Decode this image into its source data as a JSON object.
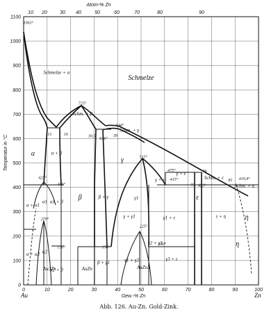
{
  "top_axis_title": "Atom-% Zn",
  "top_ticks": [
    "10",
    "20",
    "30",
    "40",
    "50",
    "60",
    "70",
    "80",
    "90"
  ],
  "bottom_axis_title": "Gew.-% Zn",
  "bottom_ticks": [
    "0",
    "10",
    "20",
    "30",
    "40",
    "50",
    "60",
    "70",
    "80",
    "90",
    "100"
  ],
  "left_end_label": "Au",
  "right_end_label": "Zn",
  "y_axis_title": "Temperatur in °C",
  "y_ticks": [
    "0",
    "100",
    "200",
    "300",
    "400",
    "500",
    "600",
    "700",
    "800",
    "900",
    "1000",
    "1100"
  ],
  "caption": "Abb. 126.  Au-Zn.  Gold-Zink.",
  "chart_data": {
    "type": "phase-diagram",
    "xlim": [
      0,
      100
    ],
    "ylim": [
      0,
      1100
    ],
    "labels": [
      {
        "id": "melt",
        "text": "Schmelze",
        "x": 50,
        "y": 840
      },
      {
        "id": "melt-alpha",
        "text": "Schmelze + α",
        "x": 14,
        "y": 865
      },
      {
        "id": "melt-beta",
        "text": "Schm. + β",
        "x": 25,
        "y": 695
      },
      {
        "id": "melt-gamma",
        "text": "Schm. + γ",
        "x": 45,
        "y": 628
      },
      {
        "id": "gamma-eps",
        "text": "γ + ε",
        "x": 67,
        "y": 450
      },
      {
        "id": "schm-eps",
        "text": "Schm. + ε",
        "x": 81,
        "y": 433
      },
      {
        "id": "schm-eta",
        "text": "Schm. + η",
        "x": 94,
        "y": 400
      },
      {
        "id": "alpha",
        "text": "α",
        "x": 4,
        "y": 530
      },
      {
        "id": "alpha-beta",
        "text": "α + β",
        "x": 14,
        "y": 535
      },
      {
        "id": "beta",
        "text": "β",
        "x": 24,
        "y": 350
      },
      {
        "id": "beta-gamma",
        "text": "β + γ",
        "x": 34,
        "y": 355
      },
      {
        "id": "gamma",
        "text": "γ",
        "x": 42,
        "y": 505
      },
      {
        "id": "gamma1",
        "text": "γ1",
        "x": 48,
        "y": 350
      },
      {
        "id": "gamma-gamma1",
        "text": "γ + γ1",
        "x": 45,
        "y": 275
      },
      {
        "id": "gamma1-eps",
        "text": "γ1 + ε",
        "x": 62,
        "y": 270
      },
      {
        "id": "gamma-eps2",
        "text": "γ + ε",
        "x": 58,
        "y": 425
      },
      {
        "id": "eps",
        "text": "ε",
        "x": 74,
        "y": 350
      },
      {
        "id": "eps-eta",
        "text": "ε + η",
        "x": 84,
        "y": 275
      },
      {
        "id": "eta",
        "text": "η",
        "x": 95,
        "y": 270
      },
      {
        "id": "eta2",
        "text": "η",
        "x": 91,
        "y": 160
      },
      {
        "id": "alpha-a1",
        "text": "α + α1",
        "x": 4,
        "y": 320
      },
      {
        "id": "a1",
        "text": "α1",
        "x": 9,
        "y": 335
      },
      {
        "id": "a1-beta",
        "text": "α1 + β",
        "x": 14,
        "y": 335
      },
      {
        "id": "a2",
        "text": "α2",
        "x": 9,
        "y": 130
      },
      {
        "id": "au3zn",
        "text": "Au3Zn",
        "x": 11,
        "y": 60
      },
      {
        "id": "a2-b",
        "text": "α2 + β",
        "x": 14,
        "y": 55
      },
      {
        "id": "auzn",
        "text": "AuZn",
        "x": 27,
        "y": 60
      },
      {
        "id": "b-g1",
        "text": "β + γ1",
        "x": 34,
        "y": 85
      },
      {
        "id": "g1-g2",
        "text": "γ1 + γ2",
        "x": 46,
        "y": 95
      },
      {
        "id": "g2-g3",
        "text": "γ2 + γ3",
        "x": 56,
        "y": 165
      },
      {
        "id": "g3-eps",
        "text": "γ3 + ε",
        "x": 63,
        "y": 100
      },
      {
        "id": "auzn3",
        "text": "AuZn3",
        "x": 51,
        "y": 65
      },
      {
        "id": "a-a2",
        "text": "α + α2",
        "x": 4,
        "y": 120
      }
    ],
    "temperature_annotations": [
      {
        "text": "1063°",
        "x": 2,
        "y": 1070
      },
      {
        "text": "725°",
        "x": 25,
        "y": 740
      },
      {
        "text": "644°",
        "x": 41,
        "y": 650
      },
      {
        "text": "13",
        "x": 11,
        "y": 612
      },
      {
        "text": "16",
        "x": 18,
        "y": 612
      },
      {
        "text": "30,5",
        "x": 29,
        "y": 605
      },
      {
        "text": "636°",
        "x": 34,
        "y": 595
      },
      {
        "text": "39",
        "x": 39,
        "y": 607
      },
      {
        "text": "515°",
        "x": 51,
        "y": 520
      },
      {
        "text": "475°",
        "x": 63,
        "y": 465
      },
      {
        "text": "415°",
        "x": 64,
        "y": 427
      },
      {
        "text": "73",
        "x": 72,
        "y": 405
      },
      {
        "text": "78",
        "x": 77,
        "y": 460
      },
      {
        "text": "423°",
        "x": 76,
        "y": 403
      },
      {
        "text": "81",
        "x": 88,
        "y": 425
      },
      {
        "text": "419,4°",
        "x": 94,
        "y": 430
      },
      {
        "text": "425°",
        "x": 8,
        "y": 435
      },
      {
        "text": "406°",
        "x": 16,
        "y": 407
      },
      {
        "text": "270°",
        "x": 9,
        "y": 265
      },
      {
        "text": "150°",
        "x": 16,
        "y": 150
      },
      {
        "text": "150°",
        "x": 35,
        "y": 150
      },
      {
        "text": "150°",
        "x": 59,
        "y": 162
      },
      {
        "text": "225°",
        "x": 51,
        "y": 235
      }
    ]
  }
}
